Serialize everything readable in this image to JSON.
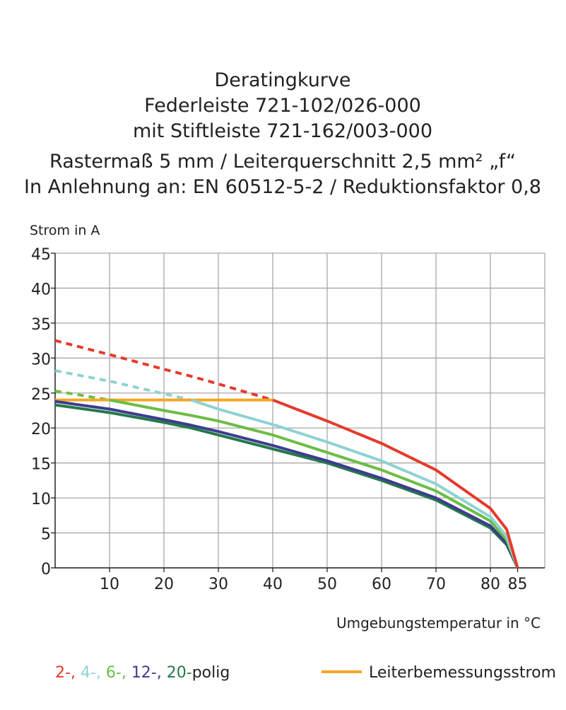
{
  "chart_data": {
    "type": "line",
    "title": [
      "Deratingkurve",
      "Federleiste 721-102/026-000",
      "mit Stiftleiste 721-162/003-000",
      "Rastermaß 5 mm / Leiterquerschnitt 2,5 mm² „f“",
      "In Anlehnung an: EN 60512-5-2 / Reduktionsfaktor 0,8"
    ],
    "y_label": "Strom in A",
    "x_label": "Umgebungstemperatur in °C",
    "x": [
      0,
      10,
      20,
      25,
      30,
      40,
      50,
      60,
      70,
      80,
      83,
      85
    ],
    "xlim": [
      0,
      90
    ],
    "xticks": [
      10,
      20,
      30,
      40,
      50,
      60,
      70,
      80,
      85
    ],
    "xgrid": [
      10,
      20,
      30,
      40,
      50,
      60,
      70,
      80,
      90
    ],
    "ylim": [
      0,
      45
    ],
    "yticks": [
      0,
      5,
      10,
      15,
      20,
      25,
      30,
      35,
      40,
      45
    ],
    "grid": true,
    "legend_separator": ",",
    "legend_suffix": "polig",
    "series": [
      {
        "name": "2-",
        "color": "#e53a2b",
        "dashed_values": [
          32.5,
          30.5,
          28.4,
          27.4,
          26.3,
          24,
          null,
          null,
          null,
          null,
          null,
          null
        ],
        "values": [
          null,
          null,
          null,
          null,
          null,
          24,
          21,
          17.8,
          14,
          8.5,
          5.5,
          0
        ]
      },
      {
        "name": "4-",
        "color": "#8ed2d2",
        "dashed_values": [
          28.2,
          26.7,
          24.9,
          24,
          null,
          null,
          null,
          null,
          null,
          null,
          null,
          null
        ],
        "values": [
          null,
          null,
          null,
          24,
          22.7,
          20.5,
          18,
          15.3,
          12,
          7.3,
          4.5,
          0
        ]
      },
      {
        "name": "6-",
        "color": "#6cbd45",
        "dashed_values": [
          25.3,
          24,
          null,
          null,
          null,
          null,
          null,
          null,
          null,
          null,
          null,
          null
        ],
        "values": [
          null,
          24,
          22.5,
          21.8,
          21,
          19,
          16.5,
          14,
          11,
          6.7,
          4,
          0
        ]
      },
      {
        "name": "12-",
        "color": "#3c3d8e",
        "values": [
          23.8,
          22.7,
          21.2,
          20.4,
          19.5,
          17.5,
          15.3,
          12.8,
          10,
          6,
          3.5,
          0
        ]
      },
      {
        "name": "20-",
        "color": "#247a48",
        "values": [
          23.3,
          22.2,
          20.8,
          20,
          19,
          17,
          15,
          12.5,
          9.7,
          5.7,
          3.3,
          0
        ]
      }
    ],
    "reference": {
      "name": "Leiterbemessungsstrom",
      "color": "#f5a623",
      "values": [
        24,
        24,
        24,
        24,
        24,
        24,
        null,
        null,
        null,
        null,
        null,
        null
      ]
    }
  }
}
